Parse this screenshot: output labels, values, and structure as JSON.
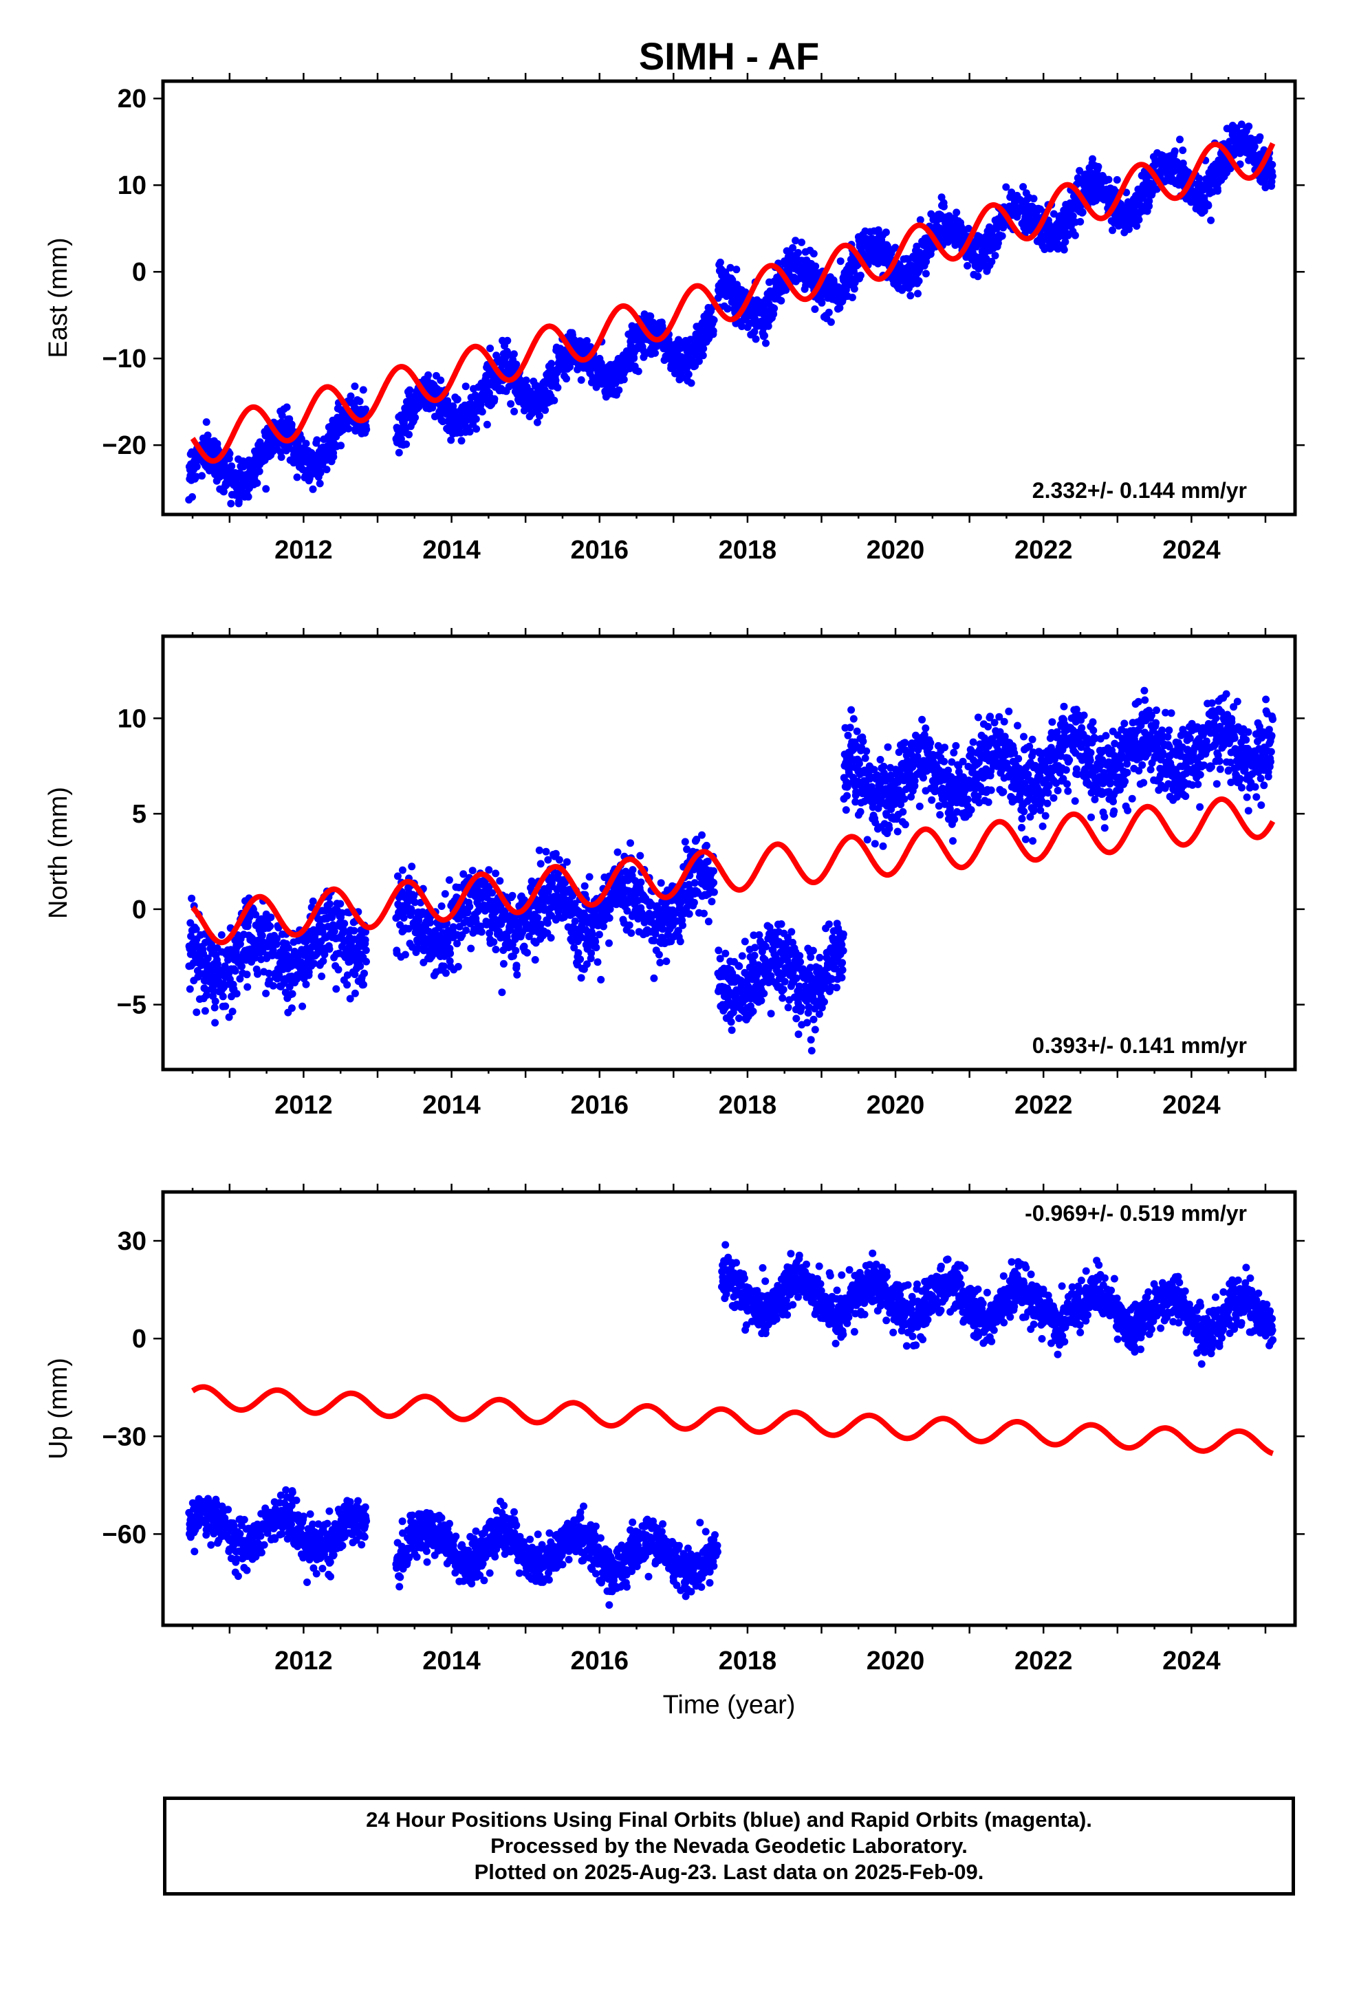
{
  "title": "SIMH - AF",
  "colors": {
    "observations": "#0000ff",
    "model_fit": "#ff0000",
    "frame": "#000000"
  },
  "caption": {
    "line1": "24 Hour Positions Using Final Orbits (blue) and Rapid Orbits (magenta).",
    "line2": "Processed by the Nevada Geodetic Laboratory.",
    "line3": "Plotted on 2025-Aug-23. Last data on 2025-Feb-09."
  },
  "chart_data": [
    {
      "type": "scatter",
      "title": "SIMH - AF",
      "xlabel": "",
      "ylabel": "East (mm)",
      "xlim": [
        2010.1,
        2025.4
      ],
      "ylim": [
        -28,
        22
      ],
      "x_ticks": [
        2012,
        2014,
        2016,
        2018,
        2020,
        2022,
        2024
      ],
      "y_ticks": [
        20,
        10,
        0,
        -10,
        -20
      ],
      "y_tick_labels": [
        "20",
        "10",
        "0",
        "−10",
        "−20"
      ],
      "rate_label": "2.332+/- 0.144 mm/yr",
      "rate_position": "bottom-right",
      "grid": false,
      "series": [
        {
          "kind": "observations",
          "color": "#0000ff",
          "segments": [
            {
              "x_range": [
                2010.45,
                2012.85
              ],
              "offset": -23.7,
              "rate": 2.332,
              "annual_amp": 2.3,
              "phase": 0.4,
              "noise": 1.2
            },
            {
              "x_range": [
                2013.25,
                2017.55
              ],
              "offset": -17.0,
              "rate": 2.332,
              "annual_amp": 2.3,
              "phase": 0.4,
              "noise": 1.2
            },
            {
              "x_range": [
                2017.6,
                2025.1
              ],
              "offset": -4.0,
              "rate": 2.332,
              "annual_amp": 2.3,
              "phase": 0.4,
              "noise": 1.2
            }
          ]
        },
        {
          "kind": "model_fit",
          "color": "#ff0000",
          "x_range": [
            2010.5,
            2025.1
          ],
          "start_value": -20.0,
          "rate": 2.332,
          "annual_amp": 2.5,
          "phase": 0.05
        }
      ]
    },
    {
      "type": "scatter",
      "xlabel": "",
      "ylabel": "North (mm)",
      "xlim": [
        2010.1,
        2025.4
      ],
      "ylim": [
        -8.4,
        14.3
      ],
      "x_ticks": [
        2012,
        2014,
        2016,
        2018,
        2020,
        2022,
        2024
      ],
      "y_ticks": [
        10,
        5,
        0,
        -5
      ],
      "y_tick_labels": [
        "10",
        "5",
        "0",
        "−5"
      ],
      "rate_label": "0.393+/- 0.141 mm/yr",
      "rate_position": "bottom-right",
      "grid": false,
      "series": [
        {
          "kind": "observations",
          "color": "#0000ff",
          "segments": [
            {
              "x_range": [
                2010.45,
                2012.85
              ],
              "offset": -2.7,
              "rate": 0.393,
              "annual_amp": 1.0,
              "phase": 0.1,
              "noise": 1.0
            },
            {
              "x_range": [
                2013.25,
                2017.55
              ],
              "offset": -1.0,
              "rate": 0.393,
              "annual_amp": 1.0,
              "phase": 0.1,
              "noise": 1.0
            },
            {
              "x_range": [
                2017.6,
                2019.3
              ],
              "offset": -3.8,
              "rate": 0.393,
              "annual_amp": 1.0,
              "phase": 0.1,
              "noise": 1.0
            },
            {
              "x_range": [
                2019.3,
                2025.1
              ],
              "offset": 6.5,
              "rate": 0.393,
              "annual_amp": 1.0,
              "phase": 0.1,
              "noise": 1.0
            }
          ]
        },
        {
          "kind": "model_fit",
          "color": "#ff0000",
          "x_range": [
            2010.5,
            2025.1
          ],
          "start_value": -0.8,
          "rate": 0.393,
          "annual_amp": 1.1,
          "phase": 0.15
        }
      ]
    },
    {
      "type": "scatter",
      "xlabel": "Time (year)",
      "ylabel": "Up (mm)",
      "xlim": [
        2010.1,
        2025.4
      ],
      "ylim": [
        -88,
        45
      ],
      "x_ticks": [
        2012,
        2014,
        2016,
        2018,
        2020,
        2022,
        2024
      ],
      "y_ticks": [
        30,
        0,
        -30,
        -60
      ],
      "y_tick_labels": [
        "30",
        "0",
        "−30",
        "−60"
      ],
      "rate_label": "-0.969+/- 0.519 mm/yr",
      "rate_position": "top-right",
      "grid": false,
      "series": [
        {
          "kind": "observations",
          "color": "#0000ff",
          "segments": [
            {
              "x_range": [
                2010.45,
                2012.85
              ],
              "offset": -58.0,
              "rate": -0.969,
              "annual_amp": 5.0,
              "phase": 0.45,
              "noise": 3.5
            },
            {
              "x_range": [
                2013.25,
                2017.6
              ],
              "offset": -63.0,
              "rate": -0.969,
              "annual_amp": 5.0,
              "phase": 0.45,
              "noise": 3.5
            },
            {
              "x_range": [
                2017.65,
                2025.1
              ],
              "offset": 14.0,
              "rate": -0.969,
              "annual_amp": 5.0,
              "phase": 0.45,
              "noise": 3.5
            }
          ]
        },
        {
          "kind": "model_fit",
          "color": "#ff0000",
          "x_range": [
            2010.5,
            2025.1
          ],
          "start_value": -18.0,
          "rate": -0.969,
          "annual_amp": 3.3,
          "phase": 0.4
        }
      ]
    }
  ]
}
